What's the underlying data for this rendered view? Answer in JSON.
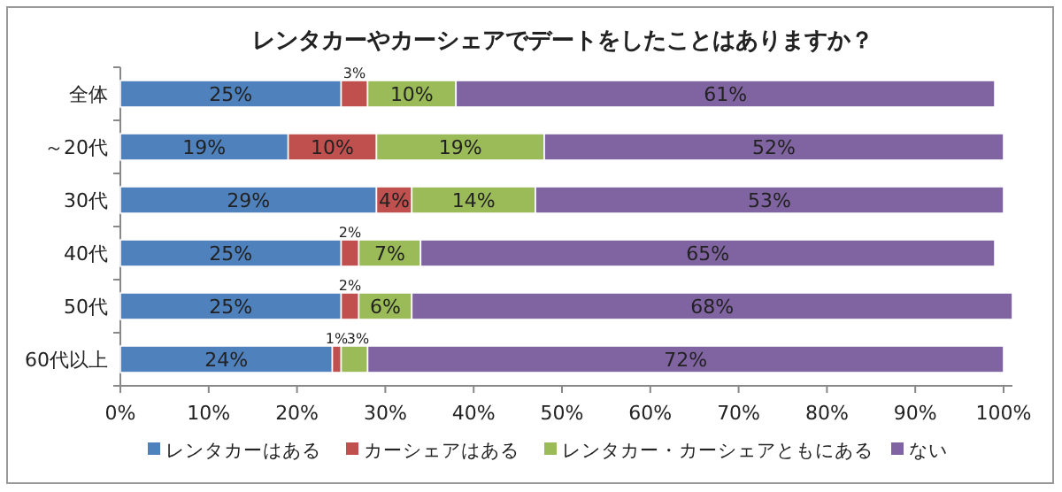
{
  "chart_data": {
    "type": "bar",
    "orientation": "horizontal",
    "stacked": true,
    "title": "レンタカーやカーシェアでデートをしたことはありますか？",
    "categories": [
      "全体",
      "～20代",
      "30代",
      "40代",
      "50代",
      "60代以上"
    ],
    "series": [
      {
        "name": "レンタカーはある",
        "color": "#4f81bd",
        "values": [
          25,
          19,
          29,
          25,
          25,
          24
        ],
        "value_labels": [
          "25%",
          "19%",
          "29%",
          "25%",
          "25%",
          "24%"
        ]
      },
      {
        "name": "カーシェアはある",
        "color": "#c0504d",
        "values": [
          3,
          10,
          4,
          2,
          2,
          1
        ],
        "value_labels": [
          "3%",
          "10%",
          "4%",
          "2%",
          "2%",
          "1%"
        ]
      },
      {
        "name": "レンタカー・カーシェアともにある",
        "color": "#9bbb59",
        "values": [
          10,
          19,
          14,
          7,
          6,
          3
        ],
        "value_labels": [
          "10%",
          "19%",
          "14%",
          "7%",
          "6%",
          "3%"
        ]
      },
      {
        "name": "ない",
        "color": "#8064a2",
        "values": [
          61,
          52,
          53,
          65,
          68,
          72
        ],
        "value_labels": [
          "61%",
          "52%",
          "53%",
          "65%",
          "68%",
          "72%"
        ]
      }
    ],
    "xlim": [
      0,
      101
    ],
    "xticks": [
      {
        "value": 0,
        "label": "0%"
      },
      {
        "value": 10,
        "label": "10%"
      },
      {
        "value": 20,
        "label": "20%"
      },
      {
        "value": 30,
        "label": "30%"
      },
      {
        "value": 40,
        "label": "40%"
      },
      {
        "value": 50,
        "label": "50%"
      },
      {
        "value": 60,
        "label": "60%"
      },
      {
        "value": 70,
        "label": "70%"
      },
      {
        "value": 80,
        "label": "80%"
      },
      {
        "value": 90,
        "label": "90%"
      },
      {
        "value": 100,
        "label": "100%"
      }
    ],
    "grid": false,
    "legend": "bottom"
  }
}
